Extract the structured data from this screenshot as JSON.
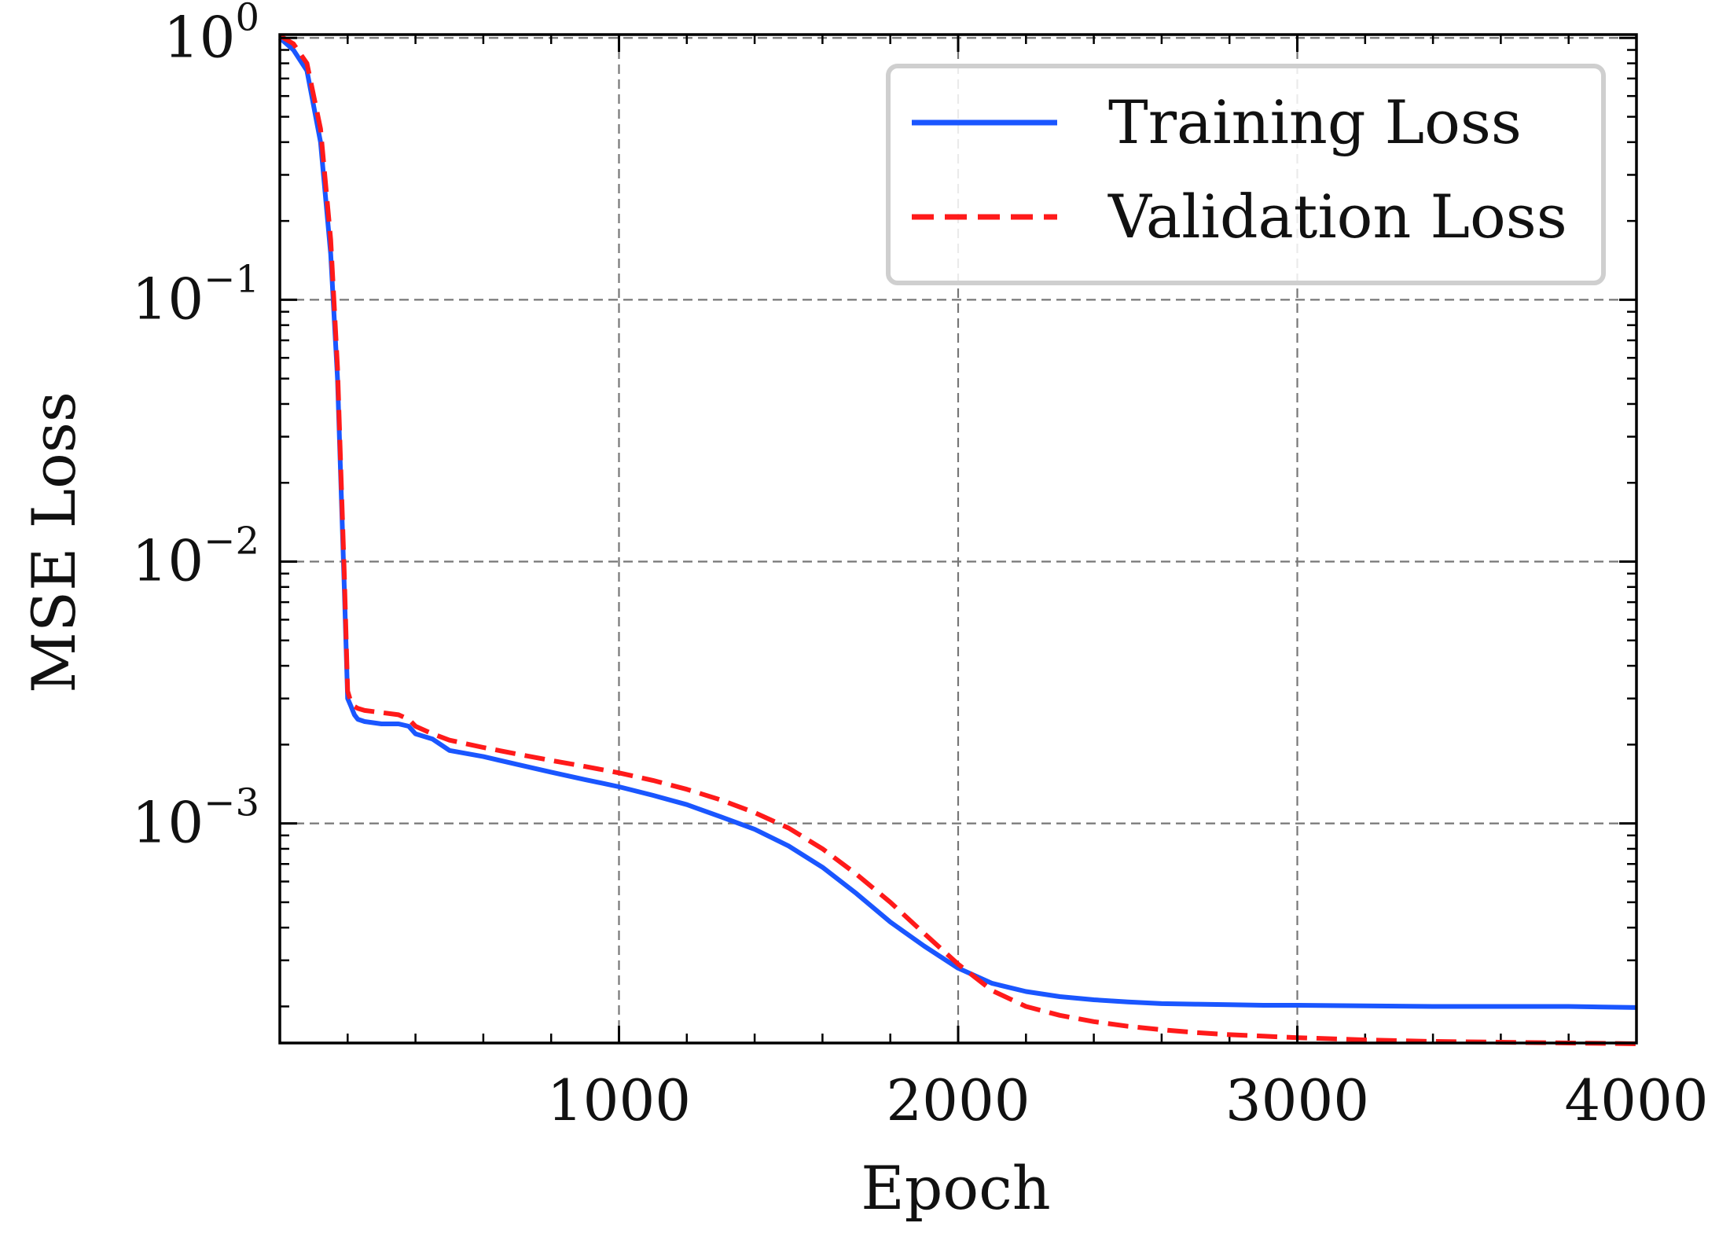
{
  "chart_data": {
    "type": "line",
    "title": "",
    "xlabel": "Epoch",
    "ylabel": "MSE Loss",
    "xscale": "linear",
    "yscale": "log",
    "xlim": [
      0,
      4000
    ],
    "ylim": [
      0.000145,
      1.03
    ],
    "grid": true,
    "legend_position": "top-right",
    "x_ticks": [
      {
        "value": 1000,
        "label": "1000"
      },
      {
        "value": 2000,
        "label": "2000"
      },
      {
        "value": 3000,
        "label": "3000"
      },
      {
        "value": 4000,
        "label": "4000"
      }
    ],
    "y_ticks": [
      {
        "value": 1,
        "base": "10",
        "exp": "0"
      },
      {
        "value": 0.1,
        "base": "10",
        "exp": "−1"
      },
      {
        "value": 0.01,
        "base": "10",
        "exp": "−2"
      },
      {
        "value": 0.001,
        "base": "10",
        "exp": "−3"
      }
    ],
    "series": [
      {
        "name": "Training Loss",
        "color": "#1a56ff",
        "style": "solid",
        "x": [
          0,
          40,
          80,
          120,
          150,
          170,
          180,
          190,
          200,
          210,
          220,
          230,
          250,
          300,
          350,
          380,
          400,
          450,
          500,
          600,
          700,
          800,
          900,
          1000,
          1100,
          1200,
          1300,
          1400,
          1500,
          1600,
          1700,
          1800,
          1900,
          2000,
          2100,
          2200,
          2300,
          2400,
          2500,
          2600,
          2700,
          2800,
          2900,
          3000,
          3200,
          3400,
          3600,
          3800,
          4000
        ],
        "y": [
          1.0,
          0.9,
          0.75,
          0.4,
          0.15,
          0.05,
          0.02,
          0.008,
          0.003,
          0.0028,
          0.0026,
          0.0025,
          0.00245,
          0.0024,
          0.0024,
          0.00235,
          0.0022,
          0.0021,
          0.0019,
          0.0018,
          0.00168,
          0.00157,
          0.00147,
          0.00138,
          0.00128,
          0.00118,
          0.00106,
          0.00095,
          0.00082,
          0.00068,
          0.00054,
          0.00042,
          0.00034,
          0.00028,
          0.000245,
          0.000228,
          0.000218,
          0.000212,
          0.000208,
          0.000205,
          0.000204,
          0.000203,
          0.000202,
          0.000202,
          0.000201,
          0.0002,
          0.0002,
          0.0002,
          0.000198
        ]
      },
      {
        "name": "Validation Loss",
        "color": "#ff1a1a",
        "style": "dashed",
        "x": [
          0,
          40,
          80,
          120,
          150,
          170,
          180,
          190,
          200,
          210,
          220,
          230,
          250,
          300,
          350,
          380,
          400,
          450,
          500,
          600,
          700,
          800,
          900,
          1000,
          1100,
          1200,
          1300,
          1400,
          1500,
          1600,
          1700,
          1800,
          1900,
          2000,
          2100,
          2200,
          2300,
          2400,
          2500,
          2600,
          2700,
          2800,
          2900,
          3000,
          3200,
          3400,
          3600,
          3800,
          4000
        ],
        "y": [
          1.02,
          0.95,
          0.8,
          0.45,
          0.17,
          0.055,
          0.022,
          0.009,
          0.0032,
          0.0029,
          0.0028,
          0.00275,
          0.0027,
          0.00265,
          0.0026,
          0.0025,
          0.00235,
          0.0022,
          0.00208,
          0.00195,
          0.00184,
          0.00174,
          0.00165,
          0.00156,
          0.00146,
          0.00135,
          0.00123,
          0.0011,
          0.00096,
          0.0008,
          0.00064,
          0.0005,
          0.00038,
          0.00029,
          0.00023,
          0.0002,
          0.000185,
          0.000175,
          0.000168,
          0.000163,
          0.000159,
          0.000156,
          0.000154,
          0.000152,
          0.000149,
          0.000147,
          0.000146,
          0.000145,
          0.000144
        ]
      }
    ]
  }
}
